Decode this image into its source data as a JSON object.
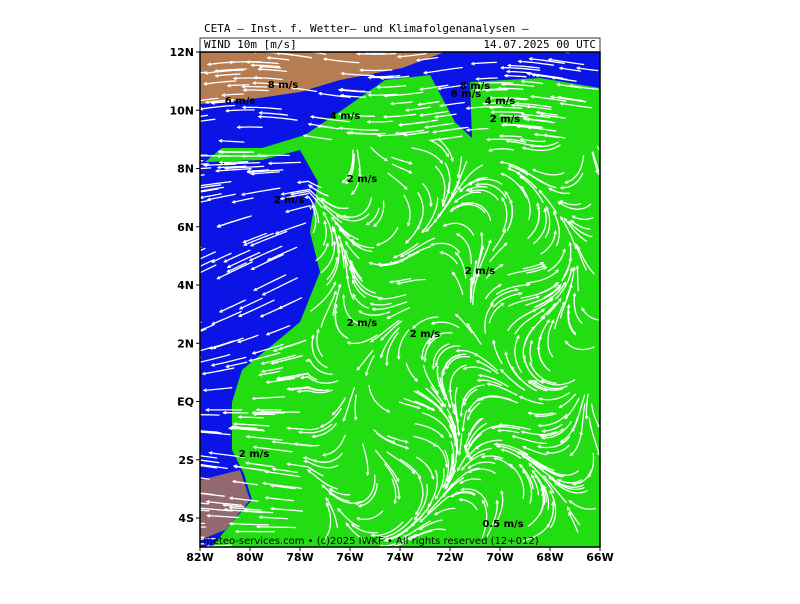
{
  "header": {
    "title": "CETA — Inst. f. Wetter— und Klimafolgenanalysen —",
    "field": "WIND 10m [m/s]",
    "date": "14.07.2025 00 UTC"
  },
  "axes": {
    "lat_labels": [
      "12N",
      "10N",
      "8N",
      "6N",
      "4N",
      "2N",
      "EQ",
      "2S",
      "4S"
    ],
    "lon_labels": [
      "82W",
      "80W",
      "78W",
      "76W",
      "74W",
      "72W",
      "70W",
      "68W",
      "66W"
    ]
  },
  "annotations": [
    "8 m/s",
    "6 m/s",
    "4 m/s",
    "8 m/s",
    "6 m/s",
    "4 m/s",
    "2 m/s",
    "2 m/s",
    "2 m/s",
    "2 m/s",
    "2 m/s",
    "2 m/s",
    "2 m/s",
    "0.5 m/s"
  ],
  "footer": "meteo-services.com • (c)2025 IWKF • All rights reserved (12+012)"
}
